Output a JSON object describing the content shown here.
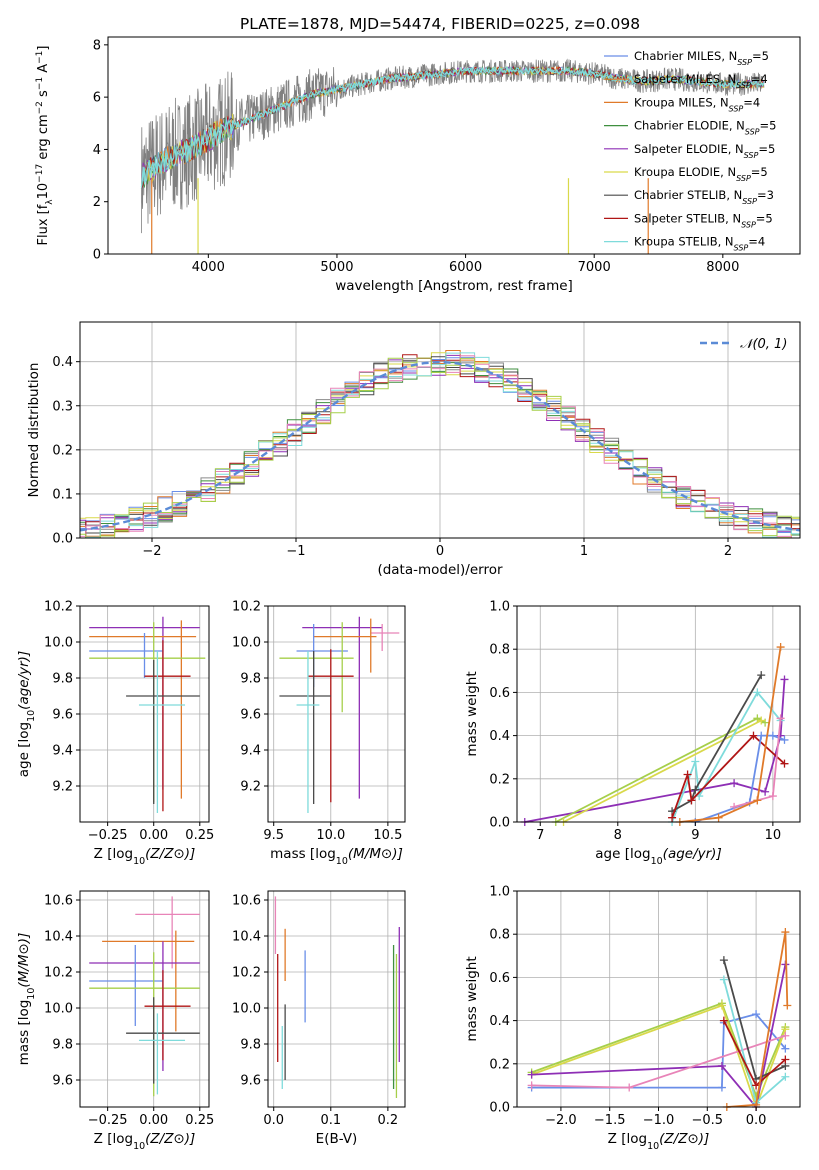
{
  "title": "PLATE=1878, MJD=54474, FIBERID=0225, z=0.098",
  "colors": [
    "#6a8ee8",
    "#e07a2a",
    "#8a8a8a",
    "#3f8f3f",
    "#8e2fb5",
    "#d9d94a",
    "#4a4a4a",
    "#b01616",
    "#7fdbdb",
    "#e884b8",
    "#a6cf4a"
  ],
  "chart_data": [
    {
      "id": "spectrum",
      "type": "line",
      "xlabel": "wavelength [Angstrom, rest frame]",
      "ylabel": "Flux [f_λ10^-17 erg cm^-2 s^-1 A^-1]",
      "xlim": [
        3220,
        8600
      ],
      "ylim": [
        0,
        8.3
      ],
      "xticks": [
        4000,
        5000,
        6000,
        7000,
        8000
      ],
      "yticks": [
        0,
        2,
        4,
        6,
        8
      ],
      "legend_position": "right",
      "legend": [
        {
          "label": "Chabrier MILES, N",
          "sub": "SSP",
          "tail": "=5",
          "color": "#6a8ee8"
        },
        {
          "label": "Salpeter MILES, N",
          "sub": "SSP",
          "tail": "=4",
          "color": "#e07a2a"
        },
        {
          "label": "Kroupa MILES, N",
          "sub": "SSP",
          "tail": "=4",
          "color": "#e07a2a"
        },
        {
          "label": "Chabrier ELODIE, N",
          "sub": "SSP",
          "tail": "=5",
          "color": "#3f8f3f"
        },
        {
          "label": "Salpeter ELODIE, N",
          "sub": "SSP",
          "tail": "=5",
          "color": "#8e2fb5"
        },
        {
          "label": "Kroupa ELODIE, N",
          "sub": "SSP",
          "tail": "=5",
          "color": "#d9d94a"
        },
        {
          "label": "Chabrier STELIB, N",
          "sub": "SSP",
          "tail": "=3",
          "color": "#4a4a4a"
        },
        {
          "label": "Salpeter STELIB, N",
          "sub": "SSP",
          "tail": "=5",
          "color": "#b01616"
        },
        {
          "label": "Kroupa STELIB, N",
          "sub": "SSP",
          "tail": "=4",
          "color": "#7fdbdb"
        }
      ],
      "continuum_wavelength": [
        3500,
        3600,
        3700,
        3800,
        3900,
        4000,
        4100,
        4200,
        4300,
        4400,
        4500,
        4600,
        4700,
        4800,
        4900,
        5000,
        5200,
        5400,
        5600,
        5800,
        6000,
        6200,
        6400,
        6600,
        6800,
        7000,
        7200,
        7400,
        7600,
        7800,
        8000,
        8200,
        8320
      ],
      "continuum_flux": [
        3.0,
        3.4,
        3.7,
        3.9,
        4.1,
        4.4,
        4.7,
        4.9,
        5.1,
        5.3,
        5.5,
        5.7,
        5.9,
        6.1,
        6.2,
        6.3,
        6.5,
        6.7,
        6.8,
        6.9,
        7.0,
        7.0,
        7.0,
        7.0,
        7.0,
        6.9,
        6.7,
        6.6,
        6.7,
        6.6,
        6.5,
        6.5,
        6.5
      ]
    },
    {
      "id": "residuals",
      "type": "histogram",
      "xlabel": "(data-model)/error",
      "ylabel": "Normed distribution",
      "xlim": [
        -2.5,
        2.5
      ],
      "ylim": [
        0,
        0.49
      ],
      "xticks": [
        -2,
        -1,
        0,
        1,
        2
      ],
      "xtick_labels": [
        "−2",
        "−1",
        "0",
        "1",
        "2"
      ],
      "yticks": [
        0.0,
        0.1,
        0.2,
        0.3,
        0.4
      ],
      "grid": true,
      "legend_label": "𝒩(0, 1)",
      "legend_position": "top-right",
      "normal_color": "#5b8bd6"
    },
    {
      "id": "age-vs-Z",
      "type": "errorbar",
      "xlabel": "Z [log10(Z/Z⊙)]",
      "ylabel": "age  [log10(age/yr)]",
      "xlim": [
        -0.4,
        0.3
      ],
      "ylim": [
        9.0,
        10.2
      ],
      "xticks": [
        -0.25,
        0.0,
        0.25
      ],
      "xtick_labels": [
        "−0.25",
        "0.00",
        "0.25"
      ],
      "yticks": [
        9.2,
        9.4,
        9.6,
        9.8,
        10.0,
        10.2
      ],
      "grid": true,
      "points": [
        {
          "x": 0.05,
          "xerr": [
            0.4,
            0.2
          ],
          "y": 10.08,
          "yerr": [
            0.9,
            0.06
          ],
          "color": "#8e2fb5"
        },
        {
          "x": 0.15,
          "xerr": [
            0.5,
            0.08
          ],
          "y": 10.03,
          "yerr": [
            0.9,
            0.09
          ],
          "color": "#e07a2a"
        },
        {
          "x": -0.05,
          "xerr": [
            0.3,
            0.1
          ],
          "y": 9.95,
          "yerr": [
            0.15,
            0.1
          ],
          "color": "#6a8ee8"
        },
        {
          "x": 0.0,
          "xerr": [
            0.35,
            0.28
          ],
          "y": 9.91,
          "yerr": [
            0.8,
            0.2
          ],
          "color": "#a6cf4a"
        },
        {
          "x": 0.05,
          "xerr": [
            0.1,
            0.15
          ],
          "y": 9.81,
          "yerr": [
            0.75,
            0.2
          ],
          "color": "#b01616"
        },
        {
          "x": -0.0,
          "xerr": [
            0.15,
            0.25
          ],
          "y": 9.7,
          "yerr": [
            0.6,
            0.2
          ],
          "color": "#4a4a4a"
        },
        {
          "x": 0.02,
          "xerr": [
            0.1,
            0.15
          ],
          "y": 9.65,
          "yerr": [
            0.6,
            0.3
          ],
          "color": "#7fdbdb"
        }
      ]
    },
    {
      "id": "age-vs-mass",
      "type": "errorbar",
      "xlabel": "mass [log10(M/M⊙)]",
      "xlim": [
        9.45,
        10.65
      ],
      "ylim": [
        9.0,
        10.2
      ],
      "xticks": [
        9.5,
        10.0,
        10.5
      ],
      "yticks": [
        9.2,
        9.4,
        9.6,
        9.8,
        10.0,
        10.2
      ],
      "grid": true,
      "points": [
        {
          "x": 10.25,
          "xerr": [
            0.5,
            0.2
          ],
          "y": 10.08,
          "yerr": [
            0.95,
            0.06
          ],
          "color": "#8e2fb5"
        },
        {
          "x": 10.45,
          "xerr": [
            0.1,
            0.15
          ],
          "y": 10.05,
          "yerr": [
            0.1,
            0.05
          ],
          "color": "#e884b8"
        },
        {
          "x": 10.35,
          "xerr": [
            0.5,
            0.05
          ],
          "y": 10.03,
          "yerr": [
            0.2,
            0.1
          ],
          "color": "#e07a2a"
        },
        {
          "x": 9.85,
          "xerr": [
            0.15,
            0.3
          ],
          "y": 9.95,
          "yerr": [
            0.2,
            0.15
          ],
          "color": "#6a8ee8"
        },
        {
          "x": 10.1,
          "xerr": [
            0.55,
            0.1
          ],
          "y": 9.91,
          "yerr": [
            0.3,
            0.2
          ],
          "color": "#a6cf4a"
        },
        {
          "x": 10.0,
          "xerr": [
            0.2,
            0.2
          ],
          "y": 9.81,
          "yerr": [
            0.7,
            0.15
          ],
          "color": "#b01616"
        },
        {
          "x": 9.85,
          "xerr": [
            0.3,
            0.15
          ],
          "y": 9.7,
          "yerr": [
            0.6,
            0.25
          ],
          "color": "#4a4a4a"
        },
        {
          "x": 9.8,
          "xerr": [
            0.1,
            0.1
          ],
          "y": 9.65,
          "yerr": [
            0.6,
            0.3
          ],
          "color": "#7fdbdb"
        }
      ]
    },
    {
      "id": "weight-vs-age",
      "type": "line",
      "xlabel": "age  [log10(age/yr)]",
      "ylabel": "mass weight",
      "xlim": [
        6.7,
        10.35
      ],
      "ylim": [
        0,
        1.0
      ],
      "xticks": [
        7,
        8,
        9,
        10
      ],
      "yticks": [
        0.0,
        0.2,
        0.4,
        0.6,
        0.8,
        1.0
      ],
      "grid": true,
      "series": [
        {
          "color": "#8e2fb5",
          "x": [
            6.8,
            9.5,
            9.9,
            10.1,
            10.15
          ],
          "y": [
            0.0,
            0.18,
            0.14,
            0.4,
            0.66
          ]
        },
        {
          "color": "#a6cf4a",
          "x": [
            7.2,
            9.8,
            9.9
          ],
          "y": [
            0.0,
            0.48,
            0.46
          ]
        },
        {
          "color": "#d9d94a",
          "x": [
            7.3,
            9.85
          ],
          "y": [
            0.0,
            0.47
          ]
        },
        {
          "color": "#7fdbdb",
          "x": [
            8.7,
            9.0,
            9.05,
            9.8,
            10.1
          ],
          "y": [
            0.0,
            0.28,
            0.12,
            0.6,
            0.47
          ]
        },
        {
          "color": "#4a4a4a",
          "x": [
            8.7,
            8.95,
            9.0,
            9.85
          ],
          "y": [
            0.05,
            0.1,
            0.15,
            0.68
          ]
        },
        {
          "color": "#b01616",
          "x": [
            8.7,
            8.9,
            8.95,
            9.75,
            10.15
          ],
          "y": [
            0.02,
            0.22,
            0.1,
            0.4,
            0.27
          ]
        },
        {
          "color": "#6a8ee8",
          "x": [
            9.0,
            9.7,
            9.85,
            10.0,
            10.15
          ],
          "y": [
            0.0,
            0.09,
            0.4,
            0.4,
            0.38
          ]
        },
        {
          "color": "#e884b8",
          "x": [
            9.5,
            9.8,
            10.0,
            10.1
          ],
          "y": [
            0.07,
            0.1,
            0.12,
            0.48
          ]
        },
        {
          "color": "#e07a2a",
          "x": [
            8.8,
            9.3,
            9.8,
            10.1
          ],
          "y": [
            0.0,
            0.02,
            0.1,
            0.81
          ]
        }
      ]
    },
    {
      "id": "mass-vs-Z",
      "type": "errorbar",
      "xlabel": "Z [log10(Z/Z⊙)]",
      "ylabel": "mass [log10(M/M⊙)]",
      "xlim": [
        -0.4,
        0.3
      ],
      "ylim": [
        9.45,
        10.65
      ],
      "xticks": [
        -0.25,
        0.0,
        0.25
      ],
      "xtick_labels": [
        "−0.25",
        "0.00",
        "0.25"
      ],
      "yticks": [
        9.6,
        9.8,
        10.0,
        10.2,
        10.4,
        10.6
      ],
      "grid": true,
      "points": [
        {
          "x": 0.1,
          "xerr": [
            0.2,
            0.15
          ],
          "y": 10.52,
          "yerr": [
            0.3,
            0.1
          ],
          "color": "#e884b8"
        },
        {
          "x": 0.12,
          "xerr": [
            0.4,
            0.1
          ],
          "y": 10.37,
          "yerr": [
            0.5,
            0.06
          ],
          "color": "#e07a2a"
        },
        {
          "x": 0.05,
          "xerr": [
            0.4,
            0.2
          ],
          "y": 10.25,
          "yerr": [
            0.6,
            0.12
          ],
          "color": "#8e2fb5"
        },
        {
          "x": -0.1,
          "xerr": [
            0.25,
            0.15
          ],
          "y": 10.15,
          "yerr": [
            0.25,
            0.2
          ],
          "color": "#6a8ee8"
        },
        {
          "x": 0.0,
          "xerr": [
            0.35,
            0.25
          ],
          "y": 10.11,
          "yerr": [
            0.6,
            0.2
          ],
          "color": "#a6cf4a"
        },
        {
          "x": 0.05,
          "xerr": [
            0.1,
            0.15
          ],
          "y": 10.01,
          "yerr": [
            0.3,
            0.2
          ],
          "color": "#b01616"
        },
        {
          "x": 0.0,
          "xerr": [
            0.15,
            0.25
          ],
          "y": 9.86,
          "yerr": [
            0.28,
            0.2
          ],
          "color": "#4a4a4a"
        },
        {
          "x": 0.02,
          "xerr": [
            0.1,
            0.15
          ],
          "y": 9.82,
          "yerr": [
            0.3,
            0.15
          ],
          "color": "#7fdbdb"
        }
      ]
    },
    {
      "id": "mass-vs-ebv",
      "type": "errorbar",
      "xlabel": "E(B-V)",
      "xlim": [
        -0.01,
        0.23
      ],
      "ylim": [
        9.45,
        10.65
      ],
      "xticks": [
        0.0,
        0.1,
        0.2
      ],
      "yticks": [
        9.6,
        9.8,
        10.0,
        10.2,
        10.4,
        10.6
      ],
      "grid": true,
      "points": [
        {
          "x": 0.003,
          "y": 10.5,
          "yerr": [
            0.2,
            0.12
          ],
          "color": "#e884b8"
        },
        {
          "x": 0.007,
          "y": 10.0,
          "yerr": [
            0.3,
            0.3
          ],
          "color": "#b01616"
        },
        {
          "x": 0.02,
          "y": 10.3,
          "yerr": [
            0.15,
            0.14
          ],
          "color": "#e07a2a"
        },
        {
          "x": 0.02,
          "y": 9.8,
          "yerr": [
            0.2,
            0.22
          ],
          "color": "#4a4a4a"
        },
        {
          "x": 0.015,
          "y": 9.75,
          "yerr": [
            0.2,
            0.15
          ],
          "color": "#7fdbdb"
        },
        {
          "x": 0.055,
          "y": 10.12,
          "yerr": [
            0.2,
            0.2
          ],
          "color": "#6a8ee8"
        },
        {
          "x": 0.21,
          "y": 10.0,
          "yerr": [
            0.45,
            0.35
          ],
          "color": "#3f8f3f"
        },
        {
          "x": 0.215,
          "y": 10.0,
          "yerr": [
            0.5,
            0.3
          ],
          "color": "#a6cf4a"
        },
        {
          "x": 0.22,
          "y": 10.1,
          "yerr": [
            0.4,
            0.35
          ],
          "color": "#8e2fb5"
        }
      ]
    },
    {
      "id": "weight-vs-Z",
      "type": "line",
      "xlabel": "Z [log10(Z/Z⊙)]",
      "ylabel": "mass weight",
      "xlim": [
        -2.45,
        0.45
      ],
      "ylim": [
        0,
        1.0
      ],
      "xticks": [
        -2.0,
        -1.5,
        -1.0,
        -0.5,
        0.0
      ],
      "xtick_labels": [
        "−2.0",
        "−1.5",
        "−1.0",
        "−0.5",
        "0.0"
      ],
      "yticks": [
        0.0,
        0.2,
        0.4,
        0.6,
        0.8,
        1.0
      ],
      "grid": true,
      "series": [
        {
          "color": "#6a8ee8",
          "x": [
            -2.3,
            -0.35,
            -0.33,
            0.0,
            0.3
          ],
          "y": [
            0.09,
            0.09,
            0.39,
            0.43,
            0.27
          ]
        },
        {
          "color": "#a6cf4a",
          "x": [
            -2.3,
            -0.35,
            0.0,
            0.3
          ],
          "y": [
            0.16,
            0.48,
            0.05,
            0.37
          ]
        },
        {
          "color": "#d9d94a",
          "x": [
            -2.3,
            -0.35,
            0.0,
            0.3
          ],
          "y": [
            0.15,
            0.47,
            0.0,
            0.36
          ]
        },
        {
          "color": "#8e2fb5",
          "x": [
            -2.3,
            -0.35,
            0.0,
            0.3
          ],
          "y": [
            0.15,
            0.19,
            0.0,
            0.66
          ]
        },
        {
          "color": "#e884b8",
          "x": [
            -2.3,
            -1.3,
            0.3
          ],
          "y": [
            0.1,
            0.09,
            0.33
          ]
        },
        {
          "color": "#7fdbdb",
          "x": [
            -0.33,
            0.0,
            0.3
          ],
          "y": [
            0.59,
            0.02,
            0.14
          ]
        },
        {
          "color": "#4a4a4a",
          "x": [
            -0.33,
            0.0,
            0.3
          ],
          "y": [
            0.68,
            0.13,
            0.19
          ]
        },
        {
          "color": "#b01616",
          "x": [
            -0.33,
            0.0,
            0.3
          ],
          "y": [
            0.4,
            0.1,
            0.22
          ]
        },
        {
          "color": "#e07a2a",
          "x": [
            -0.3,
            0.0,
            0.3,
            0.32
          ],
          "y": [
            0.0,
            0.01,
            0.81,
            0.47
          ]
        }
      ]
    }
  ]
}
